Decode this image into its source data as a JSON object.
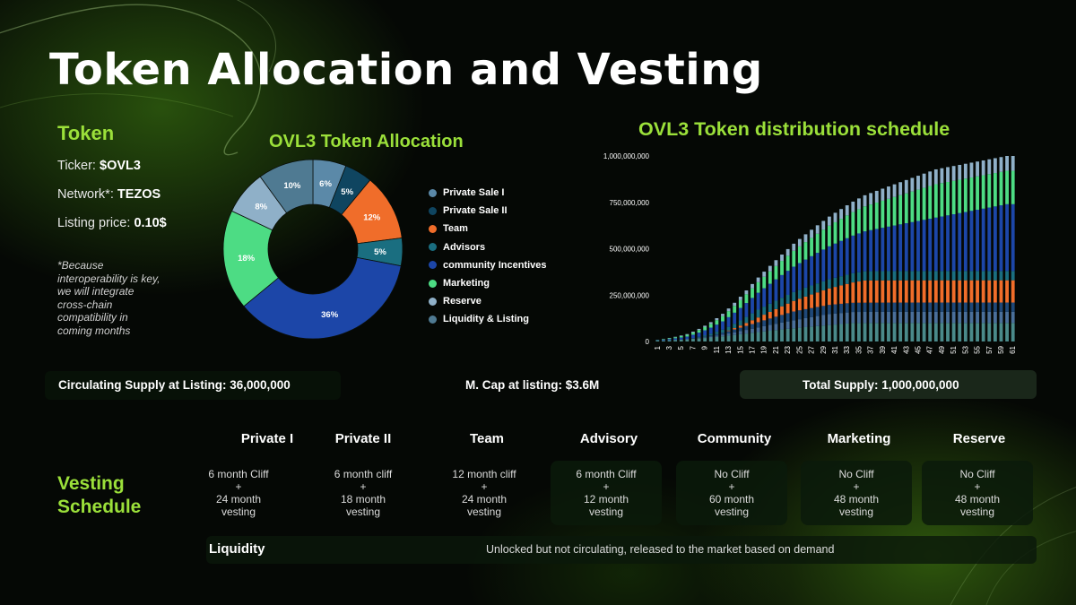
{
  "page": {
    "title": "Token Allocation and Vesting"
  },
  "token": {
    "heading": "Token",
    "ticker_label": "Ticker:",
    "ticker_value": "$OVL3",
    "network_label": "Network*:",
    "network_value": "TEZOS",
    "price_label": "Listing price:",
    "price_value": "0.10$",
    "footnote_lines": [
      "*Because",
      "interoperability is key,",
      "we will integrate",
      "cross-chain",
      "compatibility in",
      "coming months"
    ]
  },
  "allocation_chart": {
    "type": "pie",
    "title": "OVL3 Token Allocation",
    "slices": [
      {
        "label": "Private Sale I",
        "value": 6,
        "display": "6%",
        "color": "#5b89a8"
      },
      {
        "label": "Private Sale II",
        "value": 5,
        "display": "5%",
        "color": "#0f4560"
      },
      {
        "label": "Team",
        "value": 12,
        "display": "12%",
        "color": "#f06d2a"
      },
      {
        "label": "Advisors",
        "value": 5,
        "display": "5%",
        "color": "#1a6e80"
      },
      {
        "label": "community Incentives",
        "value": 36,
        "display": "36%",
        "color": "#1c46a8"
      },
      {
        "label": "Marketing",
        "value": 18,
        "display": "18%",
        "color": "#4ddc84"
      },
      {
        "label": "Reserve",
        "value": 8,
        "display": "8%",
        "color": "#8fb0c8"
      },
      {
        "label": "Liquidity & Listing",
        "value": 10,
        "display": "10%",
        "color": "#4f7a92"
      }
    ]
  },
  "chart_data": {
    "type": "bar",
    "stacked": true,
    "title": "OVL3 Token distribution schedule",
    "x_first": 1,
    "x_last": 61,
    "x_tick_labels": [
      "1",
      "3",
      "5",
      "7",
      "9",
      "11",
      "13",
      "15",
      "17",
      "19",
      "21",
      "23",
      "25",
      "27",
      "29",
      "31",
      "33",
      "35",
      "37",
      "39",
      "41",
      "43",
      "45",
      "47",
      "49",
      "51",
      "53",
      "55",
      "57",
      "59",
      "61"
    ],
    "y_tick_labels": [
      "1,000,000,000",
      "750,000,000",
      "500,000,000",
      "250,000,000",
      "0"
    ],
    "ylim": [
      0,
      1000000000
    ],
    "series": [
      {
        "name": "Liquidity & Listing",
        "color": "#4a8a8a",
        "full": 100000000,
        "cliff": 0,
        "vest": 0
      },
      {
        "name": "Private Sale I",
        "color": "#4a6f9a",
        "full": 60000000,
        "cliff": 6,
        "vest": 24
      },
      {
        "name": "Private Sale II",
        "color": "#1f4878",
        "full": 50000000,
        "cliff": 6,
        "vest": 18
      },
      {
        "name": "Team",
        "color": "#f06d2a",
        "full": 120000000,
        "cliff": 12,
        "vest": 24
      },
      {
        "name": "Advisors",
        "color": "#1a6e80",
        "full": 50000000,
        "cliff": 6,
        "vest": 12
      },
      {
        "name": "community Incentives",
        "color": "#1c46a8",
        "full": 360000000,
        "cliff": 0,
        "vest": 60
      },
      {
        "name": "Marketing",
        "color": "#4ddc84",
        "full": 180000000,
        "cliff": 0,
        "vest": 48
      },
      {
        "name": "Reserve",
        "color": "#8fb0c8",
        "full": 80000000,
        "cliff": 0,
        "vest": 48
      }
    ]
  },
  "stats": {
    "circulating": "Circulating Supply at Listing:  36,000,000",
    "mcap": "M. Cap at listing: $3.6M",
    "total_supply": "Total Supply: 1,000,000,000"
  },
  "vesting": {
    "heading_line1": "Vesting",
    "heading_line2": "Schedule",
    "columns": [
      {
        "name": "Private I",
        "line1": "6 month Cliff",
        "plus": "+",
        "line2": "24 month",
        "line3": "vesting"
      },
      {
        "name": "Private II",
        "line1": "6 month cliff",
        "plus": "+",
        "line2": "18 month",
        "line3": "vesting"
      },
      {
        "name": "Team",
        "line1": "12 month cliff",
        "plus": "+",
        "line2": "24 month",
        "line3": "vesting"
      },
      {
        "name": "Advisory",
        "line1": "6 month Cliff",
        "plus": "+",
        "line2": "12 month",
        "line3": "vesting"
      },
      {
        "name": "Community",
        "line1": "No Cliff",
        "plus": "+",
        "line2": "60 month",
        "line3": "vesting"
      },
      {
        "name": "Marketing",
        "line1": "No Cliff",
        "plus": "+",
        "line2": "48 month",
        "line3": "vesting"
      },
      {
        "name": "Reserve",
        "line1": "No Cliff",
        "plus": "+",
        "line2": "48 month",
        "line3": "vesting"
      }
    ],
    "liquidity_label": "Liquidity",
    "liquidity_text": "Unlocked but not circulating, released to the market based on demand"
  }
}
